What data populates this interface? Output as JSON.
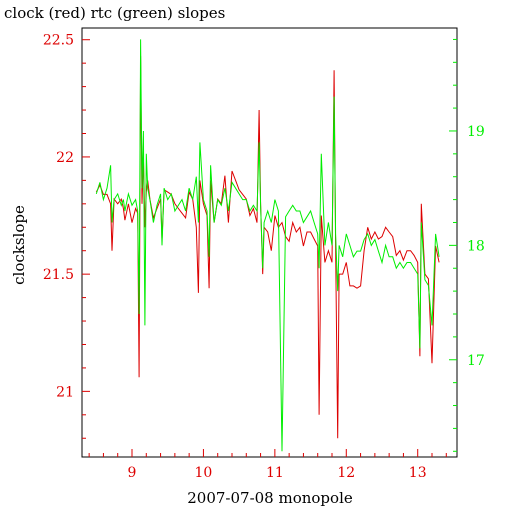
{
  "chart_data": {
    "type": "line",
    "title": "clock (red) rtc (green) slopes",
    "xlabel": "2007-07-08 monopole",
    "ylabel": "clockslope",
    "xlim": [
      8.3,
      13.55
    ],
    "ylim": [
      20.72,
      22.55
    ],
    "y2lim": [
      16.15,
      19.9
    ],
    "x_ticks": [
      9,
      10,
      11,
      12,
      13
    ],
    "x_tick_labels": [
      "9",
      "10",
      "11",
      "12",
      "13"
    ],
    "y_ticks": [
      21,
      21.5,
      22,
      22.5
    ],
    "y_tick_labels": [
      "21",
      "21.5",
      "22",
      "22.5"
    ],
    "y2_ticks": [
      17,
      18,
      19
    ],
    "y2_tick_labels": [
      "17",
      "18",
      "19"
    ],
    "colors": {
      "clock": "#dd0000",
      "rtc": "#00ee00",
      "left_axis": "#dd0000",
      "right_axis": "#00ee00",
      "frame": "#000000"
    },
    "grid": false,
    "series": [
      {
        "axis": "left",
        "x": [
          8.5,
          8.55,
          8.6,
          8.65,
          8.7,
          8.72,
          8.75,
          8.8,
          8.85,
          8.88,
          8.9,
          8.95,
          9.0,
          9.05,
          9.08,
          9.1,
          9.12,
          9.14,
          9.16,
          9.18,
          9.2,
          9.22,
          9.25,
          9.3,
          9.35,
          9.4,
          9.42,
          9.45,
          9.5,
          9.55,
          9.6,
          9.65,
          9.7,
          9.75,
          9.8,
          9.85,
          9.9,
          9.93,
          9.95,
          10.0,
          10.05,
          10.08,
          10.1,
          10.15,
          10.2,
          10.25,
          10.3,
          10.35,
          10.4,
          10.45,
          10.5,
          10.55,
          10.6,
          10.65,
          10.7,
          10.75,
          10.78,
          10.8,
          10.83,
          10.85,
          10.9,
          10.95,
          11.0,
          11.05,
          11.1,
          11.15,
          11.2,
          11.25,
          11.3,
          11.35,
          11.4,
          11.45,
          11.5,
          11.55,
          11.6,
          11.62,
          11.65,
          11.7,
          11.75,
          11.8,
          11.83,
          11.85,
          11.88,
          11.9,
          11.95,
          12.0,
          12.05,
          12.1,
          12.15,
          12.2,
          12.25,
          12.3,
          12.35,
          12.4,
          12.45,
          12.5,
          12.55,
          12.6,
          12.65,
          12.7,
          12.75,
          12.8,
          12.85,
          12.9,
          12.95,
          13.0,
          13.03,
          13.05,
          13.1,
          13.15,
          13.2,
          13.25,
          13.3
        ],
        "y": [
          21.85,
          21.88,
          21.84,
          21.84,
          21.8,
          21.6,
          21.82,
          21.8,
          21.82,
          21.78,
          21.73,
          21.8,
          21.72,
          21.78,
          21.76,
          21.06,
          22.43,
          21.8,
          22.0,
          21.7,
          21.85,
          21.9,
          21.82,
          21.74,
          21.78,
          21.82,
          21.65,
          21.86,
          21.85,
          21.84,
          21.8,
          21.78,
          21.76,
          21.74,
          21.85,
          21.82,
          21.7,
          21.42,
          21.9,
          21.8,
          21.75,
          21.44,
          21.9,
          21.72,
          21.82,
          21.8,
          21.92,
          21.72,
          21.94,
          21.9,
          21.86,
          21.84,
          21.82,
          21.75,
          21.78,
          21.72,
          22.2,
          21.8,
          21.5,
          21.7,
          21.68,
          21.6,
          21.75,
          21.7,
          21.72,
          21.66,
          21.64,
          21.72,
          21.68,
          21.7,
          21.62,
          21.68,
          21.68,
          21.65,
          21.62,
          20.9,
          21.75,
          21.55,
          21.6,
          21.55,
          22.37,
          21.62,
          20.8,
          21.5,
          21.5,
          21.55,
          21.45,
          21.45,
          21.44,
          21.45,
          21.6,
          21.7,
          21.65,
          21.68,
          21.65,
          21.66,
          21.7,
          21.68,
          21.66,
          21.58,
          21.6,
          21.56,
          21.6,
          21.6,
          21.58,
          21.55,
          21.15,
          21.8,
          21.5,
          21.48,
          21.12,
          21.62,
          21.55
        ]
      },
      {
        "axis": "right",
        "x": [
          8.5,
          8.55,
          8.6,
          8.65,
          8.7,
          8.72,
          8.75,
          8.8,
          8.85,
          8.88,
          8.9,
          8.95,
          9.0,
          9.05,
          9.08,
          9.1,
          9.12,
          9.14,
          9.16,
          9.18,
          9.2,
          9.22,
          9.25,
          9.3,
          9.35,
          9.4,
          9.42,
          9.45,
          9.5,
          9.55,
          9.6,
          9.65,
          9.7,
          9.75,
          9.8,
          9.85,
          9.9,
          9.93,
          9.95,
          10.0,
          10.05,
          10.08,
          10.1,
          10.15,
          10.2,
          10.25,
          10.3,
          10.35,
          10.4,
          10.45,
          10.5,
          10.55,
          10.6,
          10.65,
          10.7,
          10.75,
          10.78,
          10.8,
          10.83,
          10.85,
          10.9,
          10.95,
          11.0,
          11.05,
          11.1,
          11.15,
          11.2,
          11.25,
          11.3,
          11.35,
          11.4,
          11.45,
          11.5,
          11.55,
          11.6,
          11.62,
          11.65,
          11.7,
          11.75,
          11.8,
          11.83,
          11.85,
          11.88,
          11.9,
          11.95,
          12.0,
          12.05,
          12.1,
          12.15,
          12.2,
          12.25,
          12.3,
          12.35,
          12.4,
          12.45,
          12.5,
          12.55,
          12.6,
          12.65,
          12.7,
          12.75,
          12.8,
          12.85,
          12.9,
          12.95,
          13.0,
          13.03,
          13.05,
          13.1,
          13.15,
          13.2,
          13.25,
          13.3
        ],
        "y": [
          18.45,
          18.55,
          18.4,
          18.5,
          18.7,
          18.2,
          18.4,
          18.45,
          18.35,
          18.4,
          18.3,
          18.45,
          18.35,
          18.4,
          18.3,
          17.4,
          19.8,
          18.5,
          19.0,
          17.3,
          18.8,
          18.5,
          18.4,
          18.2,
          18.35,
          18.45,
          18.0,
          18.5,
          18.4,
          18.45,
          18.3,
          18.35,
          18.4,
          18.3,
          18.5,
          18.4,
          18.6,
          18.2,
          18.9,
          18.4,
          18.3,
          17.9,
          18.7,
          18.2,
          18.4,
          18.35,
          18.5,
          18.3,
          18.55,
          18.5,
          18.45,
          18.4,
          18.4,
          18.3,
          18.35,
          18.3,
          18.9,
          18.35,
          17.8,
          18.2,
          18.3,
          18.2,
          18.4,
          18.3,
          16.2,
          18.25,
          18.3,
          18.35,
          18.3,
          18.3,
          18.2,
          18.25,
          18.3,
          18.2,
          18.1,
          17.8,
          18.8,
          18.0,
          18.2,
          18.0,
          19.3,
          18.1,
          17.6,
          18.0,
          17.9,
          18.1,
          18.0,
          17.9,
          17.95,
          17.95,
          18.05,
          18.1,
          18.0,
          18.05,
          17.95,
          17.85,
          18.0,
          17.9,
          17.9,
          17.8,
          17.85,
          17.8,
          17.85,
          17.85,
          17.8,
          17.75,
          17.1,
          18.2,
          17.7,
          17.65,
          17.3,
          18.1,
          17.9
        ]
      }
    ]
  }
}
